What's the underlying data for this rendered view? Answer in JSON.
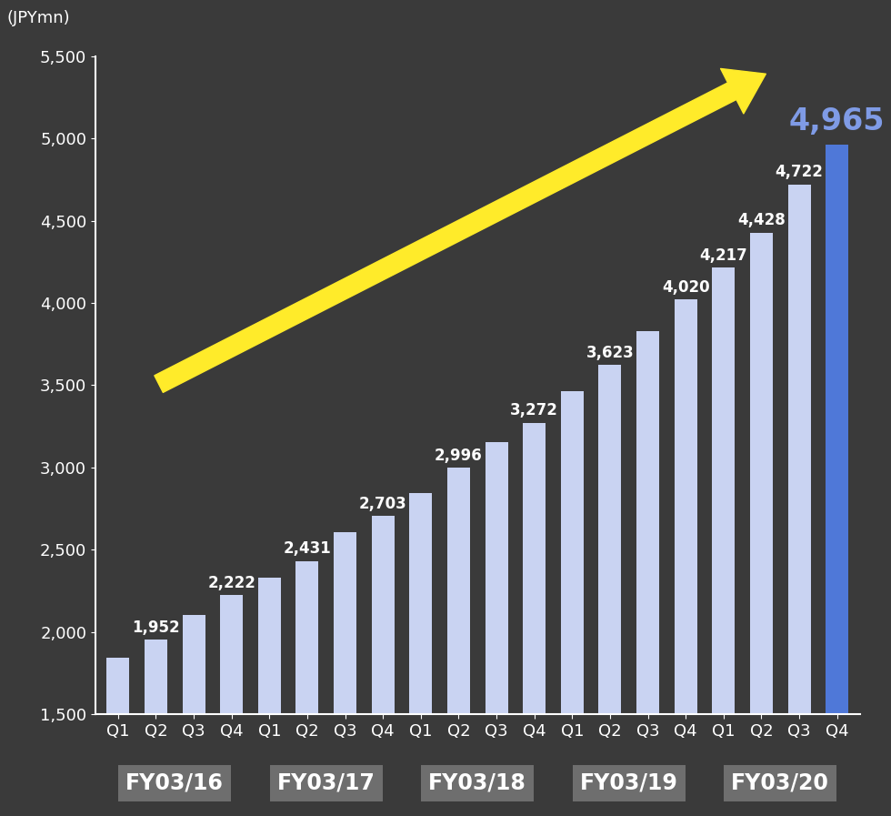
{
  "chart_data": {
    "type": "bar",
    "y_label": "(JPYmn)",
    "categories": [
      "Q1",
      "Q2",
      "Q3",
      "Q4",
      "Q1",
      "Q2",
      "Q3",
      "Q4",
      "Q1",
      "Q2",
      "Q3",
      "Q4",
      "Q1",
      "Q2",
      "Q3",
      "Q4",
      "Q1",
      "Q2",
      "Q3",
      "Q4"
    ],
    "groups": [
      "FY03/16",
      "FY03/17",
      "FY03/18",
      "FY03/19",
      "FY03/20"
    ],
    "values": [
      1840,
      1952,
      2105,
      2222,
      2330,
      2431,
      2605,
      2703,
      2845,
      2996,
      3155,
      3272,
      3465,
      3623,
      3830,
      4020,
      4217,
      4428,
      4722,
      4965
    ],
    "value_labels": [
      null,
      "1,952",
      null,
      "2,222",
      null,
      "2,431",
      null,
      "2,703",
      null,
      "2,996",
      null,
      "3,272",
      null,
      "3,623",
      null,
      "4,020",
      "4,217",
      "4,428",
      "4,722",
      "4,965"
    ],
    "colors": [
      "#c9d3f2",
      "#c9d3f2",
      "#c9d3f2",
      "#c9d3f2",
      "#c9d3f2",
      "#c9d3f2",
      "#c9d3f2",
      "#c9d3f2",
      "#c9d3f2",
      "#c9d3f2",
      "#c9d3f2",
      "#c9d3f2",
      "#c9d3f2",
      "#c9d3f2",
      "#c9d3f2",
      "#c9d3f2",
      "#c9d3f2",
      "#c9d3f2",
      "#c9d3f2",
      "#4f78d8"
    ],
    "ylim": [
      1500,
      5500
    ],
    "yticks": [
      {
        "value": 1500,
        "label": "1,500"
      },
      {
        "value": 2000,
        "label": "2,000"
      },
      {
        "value": 2500,
        "label": "2,500"
      },
      {
        "value": 3000,
        "label": "3,000"
      },
      {
        "value": 3500,
        "label": "3,500"
      },
      {
        "value": 4000,
        "label": "4,000"
      },
      {
        "value": 4500,
        "label": "4,500"
      },
      {
        "value": 5000,
        "label": "5,000"
      },
      {
        "value": 5500,
        "label": "5,500"
      }
    ],
    "grid": false
  }
}
